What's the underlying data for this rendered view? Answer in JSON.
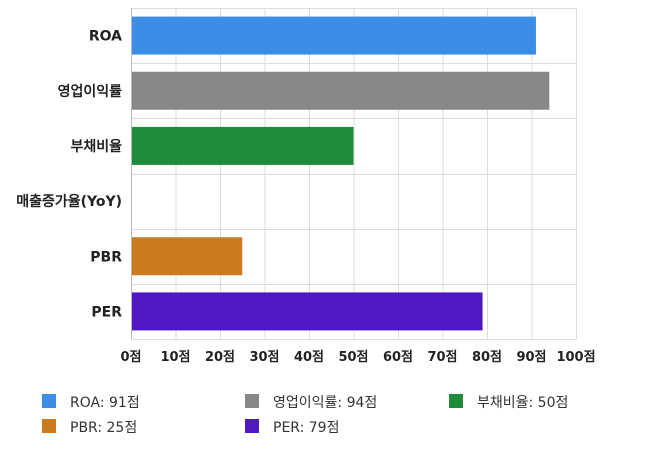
{
  "chart_data": {
    "type": "bar",
    "orientation": "horizontal",
    "categories": [
      "ROA",
      "영업이익률",
      "부채비율",
      "매출증가율(YoY)",
      "PBR",
      "PER"
    ],
    "values": [
      91,
      94,
      50,
      0,
      25,
      79
    ],
    "colors": [
      "#3b8de5",
      "#888888",
      "#1e8c3a",
      "#3b8de5",
      "#cc7a1e",
      "#5018c2"
    ],
    "xlim": [
      0,
      100
    ],
    "xticks": [
      0,
      10,
      20,
      30,
      40,
      50,
      60,
      70,
      80,
      90,
      100
    ],
    "tick_suffix": "점",
    "grid": true,
    "legend_position": "bottom",
    "legend": [
      {
        "label": "ROA: 91점",
        "color": "#3b8de5"
      },
      {
        "label": "영업이익률: 94점",
        "color": "#888888"
      },
      {
        "label": "부채비율: 50점",
        "color": "#1e8c3a"
      },
      {
        "label": "PBR: 25점",
        "color": "#cc7a1e"
      },
      {
        "label": "PER: 79점",
        "color": "#5018c2"
      }
    ]
  }
}
